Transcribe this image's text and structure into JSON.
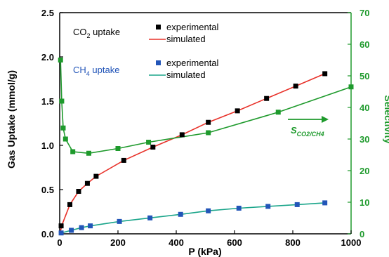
{
  "chart_data": {
    "type": "scatter",
    "xlabel": "P (kPa)",
    "ylabel": "Gas Uptake (mmol/g)",
    "y2label": "Selectivity",
    "xlim": [
      0,
      1000
    ],
    "ylim": [
      0,
      2.5
    ],
    "y2lim": [
      0,
      70
    ],
    "xticks": [
      0,
      200,
      400,
      600,
      800,
      1000
    ],
    "yticks": [
      0.0,
      0.5,
      1.0,
      1.5,
      2.0,
      2.5
    ],
    "y2ticks": [
      0,
      10,
      20,
      30,
      40,
      50,
      60,
      70
    ],
    "grid": false,
    "colors": {
      "co2_marker": "#000000",
      "co2_line": "#e8322a",
      "ch4_marker": "#2255b8",
      "ch4_line": "#1aa58a",
      "selectivity": "#1e9a2c",
      "right_axis": "#1e9a2c",
      "ch4_label": "#2255b8"
    },
    "legend": {
      "co2_group": {
        "gas": "CO",
        "gas_sub": "2",
        "suffix": " uptake",
        "placement": "top-left"
      },
      "ch4_group": {
        "gas": "CH",
        "gas_sub": "4",
        "suffix": " uptake",
        "placement": "upper-left"
      },
      "experimental": "experimental",
      "simulated": "simulated"
    },
    "annotation": {
      "text": "S",
      "subscript": "CO2/CH4",
      "arrow": "right"
    },
    "series": [
      {
        "name": "CO2 experimental",
        "kind": "marker",
        "axis": "left",
        "x": [
          5,
          35,
          65,
          95,
          125,
          220,
          320,
          420,
          510,
          610,
          710,
          810,
          910
        ],
        "y": [
          0.09,
          0.33,
          0.48,
          0.57,
          0.65,
          0.83,
          0.98,
          1.12,
          1.26,
          1.39,
          1.53,
          1.67,
          1.81
        ]
      },
      {
        "name": "CO2 simulated",
        "kind": "line",
        "axis": "left",
        "x": [
          0,
          10,
          35,
          65,
          95,
          125,
          220,
          320,
          420,
          510,
          610,
          710,
          810,
          910
        ],
        "y": [
          0.0,
          0.12,
          0.33,
          0.48,
          0.57,
          0.65,
          0.83,
          0.98,
          1.12,
          1.26,
          1.39,
          1.53,
          1.67,
          1.81
        ]
      },
      {
        "name": "CH4 experimental",
        "kind": "marker",
        "axis": "left",
        "x": [
          5,
          40,
          75,
          105,
          205,
          310,
          415,
          510,
          615,
          715,
          815,
          910
        ],
        "y": [
          0.01,
          0.04,
          0.07,
          0.09,
          0.14,
          0.18,
          0.22,
          0.26,
          0.29,
          0.31,
          0.33,
          0.35
        ]
      },
      {
        "name": "CH4 simulated",
        "kind": "line",
        "axis": "left",
        "x": [
          0,
          5,
          40,
          75,
          105,
          205,
          310,
          415,
          510,
          615,
          715,
          815,
          910
        ],
        "y": [
          0.0,
          0.01,
          0.04,
          0.07,
          0.09,
          0.14,
          0.18,
          0.22,
          0.26,
          0.29,
          0.31,
          0.33,
          0.35
        ]
      },
      {
        "name": "Selectivity",
        "kind": "line+marker",
        "axis": "right",
        "x": [
          3,
          7,
          12,
          20,
          45,
          100,
          200,
          305,
          510,
          750,
          1000
        ],
        "y": [
          55,
          42,
          33.5,
          30,
          26,
          25.5,
          27,
          29,
          32,
          38.5,
          46.5
        ]
      }
    ]
  }
}
